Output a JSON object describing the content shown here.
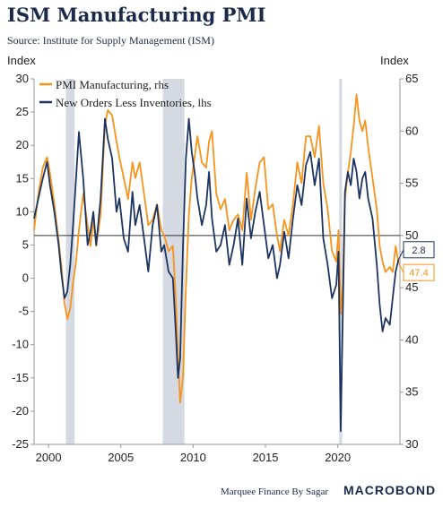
{
  "header": {
    "title": "ISM Manufacturing PMI",
    "subtitle": "Source: Institute for Supply Management (ISM)",
    "left_unit": "Index",
    "right_unit": "Index"
  },
  "footer": {
    "credit": "Marquee Finance By Sagar",
    "brand": "MACROBOND"
  },
  "chart_data": {
    "type": "line",
    "x_range": [
      1999.0,
      2024.3
    ],
    "x_ticks": [
      "2000",
      "2005",
      "2010",
      "2015",
      "2020"
    ],
    "y_left_range": [
      -25,
      30
    ],
    "y_left_ticks": [
      30,
      25,
      20,
      15,
      10,
      5,
      0,
      -5,
      -10,
      -15,
      -20,
      -25
    ],
    "y_right_range": [
      30,
      65
    ],
    "y_right_ticks": [
      65,
      60,
      55,
      50,
      45,
      40,
      35,
      30
    ],
    "reference_line_right": 50,
    "recession_shading": [
      [
        2001.2,
        2001.8
      ],
      [
        2007.9,
        2009.4
      ],
      [
        2020.1,
        2020.3
      ]
    ],
    "legend_position": "top-left",
    "colors": {
      "pmi": "#f7941d",
      "new_orders": "#1d3461",
      "recession": "#d5d9e1",
      "reference": "#333333"
    },
    "series": [
      {
        "name": "PMI Manufacturing, rhs",
        "axis": "right",
        "last_label": "47.4",
        "x": [
          1999.0,
          1999.3,
          1999.6,
          1999.9,
          2000.1,
          2000.4,
          2000.7,
          2000.9,
          2001.1,
          2001.3,
          2001.5,
          2001.7,
          2001.9,
          2002.1,
          2002.4,
          2002.7,
          2002.9,
          2003.1,
          2003.3,
          2003.6,
          2003.9,
          2004.1,
          2004.4,
          2004.7,
          2004.9,
          2005.2,
          2005.5,
          2005.8,
          2006.0,
          2006.3,
          2006.6,
          2006.9,
          2007.2,
          2007.5,
          2007.8,
          2008.0,
          2008.3,
          2008.6,
          2008.8,
          2008.95,
          2009.1,
          2009.3,
          2009.5,
          2009.7,
          2009.9,
          2010.1,
          2010.3,
          2010.6,
          2010.9,
          2011.1,
          2011.3,
          2011.6,
          2011.9,
          2012.2,
          2012.5,
          2012.8,
          2013.1,
          2013.4,
          2013.7,
          2014.0,
          2014.3,
          2014.6,
          2014.9,
          2015.2,
          2015.5,
          2015.8,
          2016.0,
          2016.3,
          2016.6,
          2016.9,
          2017.2,
          2017.5,
          2017.8,
          2018.1,
          2018.4,
          2018.7,
          2019.0,
          2019.3,
          2019.6,
          2019.9,
          2020.05,
          2020.2,
          2020.35,
          2020.5,
          2020.7,
          2020.9,
          2021.1,
          2021.3,
          2021.5,
          2021.7,
          2021.9,
          2022.1,
          2022.4,
          2022.7,
          2022.9,
          2023.1,
          2023.3,
          2023.6,
          2023.8,
          2024.0,
          2024.2
        ],
        "values": [
          50.5,
          54.0,
          56.5,
          57.5,
          56.0,
          53.0,
          49.5,
          47.0,
          43.5,
          42.0,
          43.0,
          45.5,
          47.5,
          50.5,
          54.0,
          51.0,
          49.0,
          51.5,
          49.0,
          52.0,
          60.5,
          62.0,
          61.5,
          59.0,
          57.5,
          55.5,
          53.5,
          57.0,
          55.5,
          57.0,
          54.0,
          51.0,
          51.5,
          53.0,
          50.5,
          50.0,
          48.5,
          49.0,
          44.0,
          38.5,
          34.0,
          36.5,
          45.0,
          52.0,
          55.5,
          57.5,
          59.5,
          57.0,
          56.5,
          59.0,
          60.0,
          54.0,
          52.5,
          53.5,
          50.5,
          51.5,
          52.0,
          50.5,
          56.0,
          51.5,
          54.5,
          57.0,
          57.5,
          52.5,
          53.0,
          50.0,
          48.5,
          51.5,
          50.0,
          53.0,
          57.0,
          55.0,
          59.5,
          59.5,
          57.5,
          60.5,
          55.0,
          52.5,
          48.5,
          47.5,
          50.5,
          42.5,
          45.5,
          53.5,
          56.0,
          58.0,
          60.5,
          63.5,
          61.0,
          60.0,
          61.0,
          58.5,
          55.5,
          52.5,
          49.0,
          47.5,
          46.5,
          47.0,
          46.5,
          49.0,
          47.4
        ]
      },
      {
        "name": "New Orders Less Inventories, lhs",
        "axis": "left",
        "last_label": "2.8",
        "x": [
          1999.0,
          1999.3,
          1999.6,
          1999.9,
          2000.1,
          2000.4,
          2000.7,
          2000.9,
          2001.1,
          2001.3,
          2001.5,
          2001.7,
          2001.9,
          2002.1,
          2002.4,
          2002.7,
          2002.9,
          2003.1,
          2003.3,
          2003.6,
          2003.9,
          2004.1,
          2004.4,
          2004.7,
          2004.9,
          2005.2,
          2005.5,
          2005.8,
          2006.0,
          2006.3,
          2006.6,
          2006.9,
          2007.2,
          2007.5,
          2007.8,
          2008.0,
          2008.3,
          2008.6,
          2008.8,
          2008.95,
          2009.1,
          2009.3,
          2009.5,
          2009.7,
          2009.9,
          2010.1,
          2010.3,
          2010.6,
          2010.9,
          2011.1,
          2011.3,
          2011.6,
          2011.9,
          2012.2,
          2012.5,
          2012.8,
          2013.1,
          2013.4,
          2013.7,
          2014.0,
          2014.3,
          2014.6,
          2014.9,
          2015.2,
          2015.5,
          2015.8,
          2016.0,
          2016.3,
          2016.6,
          2016.9,
          2017.2,
          2017.5,
          2017.8,
          2018.1,
          2018.4,
          2018.7,
          2019.0,
          2019.3,
          2019.6,
          2019.9,
          2020.05,
          2020.2,
          2020.35,
          2020.5,
          2020.7,
          2020.9,
          2021.1,
          2021.3,
          2021.5,
          2021.7,
          2021.9,
          2022.1,
          2022.4,
          2022.7,
          2022.9,
          2023.1,
          2023.3,
          2023.6,
          2023.8,
          2024.0,
          2024.2
        ],
        "values": [
          9.0,
          12.0,
          15.0,
          17.5,
          14.0,
          10.0,
          5.0,
          0.5,
          -3.0,
          -2.0,
          2.0,
          8.0,
          15.0,
          22.0,
          15.0,
          5.0,
          7.0,
          10.0,
          5.0,
          12.0,
          24.0,
          21.0,
          18.0,
          10.0,
          12.0,
          6.0,
          4.0,
          13.0,
          8.0,
          11.0,
          6.0,
          1.0,
          8.0,
          11.0,
          4.0,
          5.0,
          1.0,
          0.0,
          -8.0,
          -15.0,
          -12.0,
          5.0,
          18.0,
          24.0,
          19.0,
          16.0,
          12.0,
          8.0,
          11.0,
          16.0,
          9.0,
          4.0,
          5.0,
          8.0,
          2.0,
          5.0,
          9.0,
          2.0,
          12.0,
          6.0,
          10.0,
          13.0,
          8.0,
          3.0,
          5.0,
          0.0,
          2.0,
          7.0,
          3.0,
          9.0,
          14.0,
          11.0,
          17.0,
          19.0,
          14.0,
          18.0,
          6.0,
          2.0,
          -3.0,
          -1.0,
          4.0,
          -23.0,
          -5.0,
          13.0,
          16.0,
          14.0,
          18.0,
          16.0,
          12.0,
          15.0,
          16.0,
          12.0,
          9.0,
          2.0,
          -4.0,
          -8.0,
          -6.0,
          -7.0,
          -3.0,
          1.0,
          2.8
        ]
      }
    ]
  }
}
